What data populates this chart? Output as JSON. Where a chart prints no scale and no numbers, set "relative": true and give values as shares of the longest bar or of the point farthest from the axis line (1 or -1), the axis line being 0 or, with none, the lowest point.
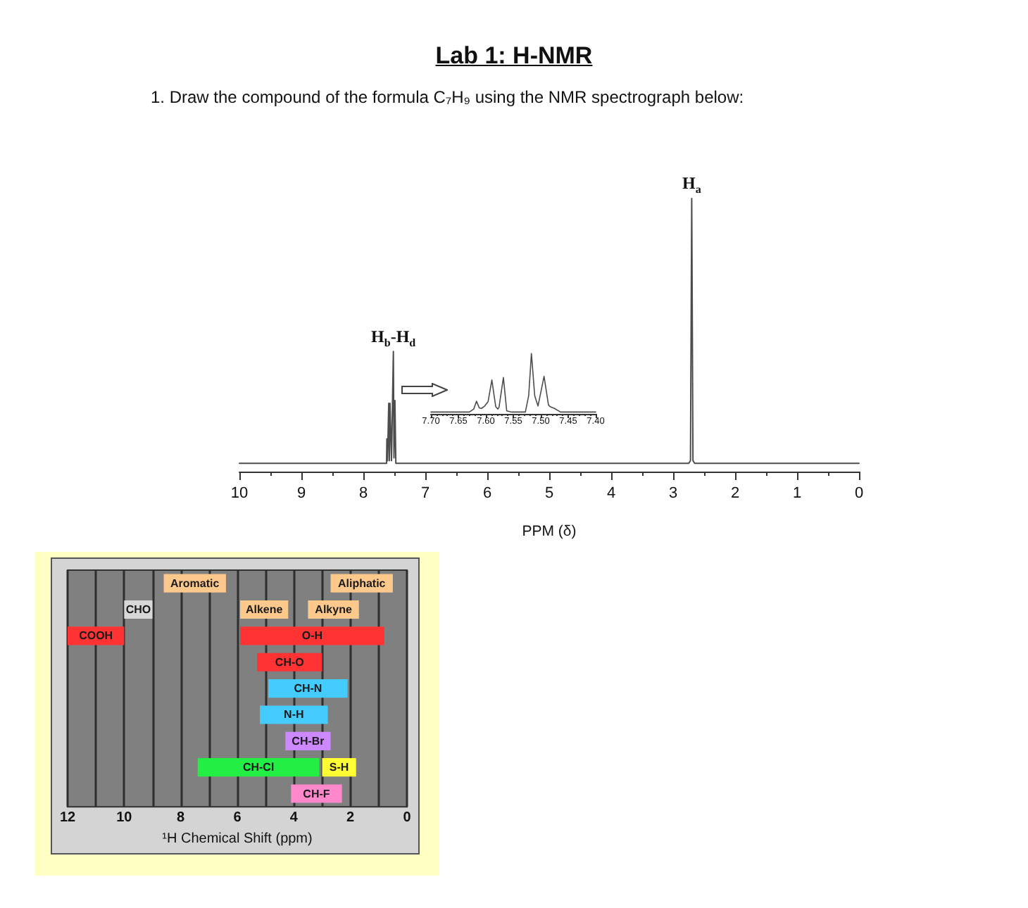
{
  "chart_data": [
    {
      "type": "line",
      "title": "Lab 1: H-NMR",
      "subtitle": "1. Draw the compound of the formula C₇H₉ using the NMR spectrograph below:",
      "xlabel": "PPM (δ)",
      "relative": true,
      "color": "#4d4d4d",
      "x": [
        10,
        7.66,
        7.625,
        7.62,
        7.61,
        7.59,
        7.58,
        7.57,
        7.545,
        7.515,
        7.505,
        7.49,
        7.475,
        7.44,
        2.75,
        2.72,
        2.7,
        2.68,
        2.65,
        0
      ],
      "values": [
        0.03,
        0.03,
        0.03,
        0.12,
        0.04,
        0.25,
        0.04,
        0.25,
        0.04,
        0.44,
        0.05,
        0.26,
        0.03,
        0.03,
        0.03,
        0.04,
        1,
        0.04,
        0.03,
        0.03
      ],
      "xlim": [
        10,
        0
      ],
      "xticks": [
        10,
        {
          "value": 9.5,
          "label": null
        },
        9,
        {
          "value": 8.5,
          "label": null
        },
        8,
        {
          "value": 7.5,
          "label": null
        },
        7,
        {
          "value": 6.5,
          "label": null
        },
        6,
        {
          "value": 5.5,
          "label": null
        },
        5,
        {
          "value": 4.5,
          "label": null
        },
        4,
        {
          "value": 3.5,
          "label": null
        },
        3,
        {
          "value": 2.5,
          "label": null
        },
        2,
        {
          "value": 1.5,
          "label": null
        },
        1,
        {
          "value": 0.5,
          "label": null
        },
        0
      ],
      "annotations": [
        {
          "text": "H$_{a}$",
          "x": 2.7,
          "y": 1
        },
        {
          "text": "H$_{b}$-H$_{d}$",
          "x": 7.515,
          "y": 0.44
        }
      ]
    },
    {
      "type": "line",
      "relative": true,
      "color": "#4d4d4d",
      "x": [
        7.7,
        7.63,
        7.622,
        7.617,
        7.612,
        7.608,
        7.602,
        7.596,
        7.589,
        7.582,
        7.578,
        7.576,
        7.568,
        7.562,
        7.553,
        7.528,
        7.522,
        7.517,
        7.511,
        7.505,
        7.494,
        7.486,
        7.483,
        7.475,
        7.464,
        7.4
      ],
      "values": [
        0.03,
        0.03,
        0.08,
        0.21,
        0.1,
        0.09,
        0.13,
        0.2,
        0.56,
        0.12,
        0.08,
        0.11,
        0.6,
        0.05,
        0.03,
        0.03,
        0.3,
        1,
        0.3,
        0.13,
        0.62,
        0.15,
        0.12,
        0.09,
        0.03,
        0.03
      ],
      "xlim": [
        7.7,
        7.4
      ],
      "xticks": [
        {
          "value": 7.7,
          "label": "7.70"
        },
        {
          "value": 7.69,
          "label": null
        },
        {
          "value": 7.68,
          "label": null
        },
        {
          "value": 7.67,
          "label": null
        },
        {
          "value": 7.66,
          "label": null
        },
        7.65,
        {
          "value": 7.64,
          "label": null
        },
        {
          "value": 7.63,
          "label": null
        },
        {
          "value": 7.62,
          "label": null
        },
        {
          "value": 7.61,
          "label": null
        },
        {
          "value": 7.6,
          "label": "7.60"
        },
        {
          "value": 7.59,
          "label": null
        },
        {
          "value": 7.58,
          "label": null
        },
        {
          "value": 7.57,
          "label": null
        },
        {
          "value": 7.56,
          "label": null
        },
        7.55,
        {
          "value": 7.54,
          "label": null
        },
        {
          "value": 7.53,
          "label": null
        },
        {
          "value": 7.52,
          "label": null
        },
        {
          "value": 7.51,
          "label": null
        },
        {
          "value": 7.5,
          "label": "7.50"
        },
        {
          "value": 7.49,
          "label": null
        },
        {
          "value": 7.48,
          "label": null
        },
        {
          "value": 7.47,
          "label": null
        },
        {
          "value": 7.46,
          "label": null
        },
        7.45,
        {
          "value": 7.44,
          "label": null
        },
        {
          "value": 7.43,
          "label": null
        },
        {
          "value": 7.42,
          "label": null
        },
        {
          "value": 7.41,
          "label": null
        },
        {
          "value": 7.4,
          "label": "7.40"
        }
      ]
    },
    {
      "type": "bar",
      "orientation": "horizontal",
      "xlabel": "¹H Chemical Shift (ppm)",
      "grid": "x",
      "categories": [
        null,
        null,
        null,
        null,
        null,
        null,
        null,
        null,
        null
      ],
      "xlim": [
        12,
        0
      ],
      "xticks": [
        12,
        {
          "value": 11,
          "label": null
        },
        10,
        {
          "value": 9,
          "label": null
        },
        8,
        {
          "value": 7,
          "label": null
        },
        6,
        {
          "value": 5,
          "label": null
        },
        4,
        {
          "value": 3,
          "label": null
        },
        2,
        {
          "value": 1,
          "label": null
        },
        0
      ],
      "series": [
        {
          "name": "Aromatic",
          "color": "#fcc88c",
          "values": [
            2.2,
            null,
            null,
            null,
            null,
            null,
            null,
            null,
            null
          ],
          "base": [
            6.4,
            null,
            null,
            null,
            null,
            null,
            null,
            null,
            null
          ]
        },
        {
          "name": "Aliphatic",
          "color": "#fcc88c",
          "values": [
            2.2,
            null,
            null,
            null,
            null,
            null,
            null,
            null,
            null
          ],
          "base": [
            0.5,
            null,
            null,
            null,
            null,
            null,
            null,
            null,
            null
          ]
        },
        {
          "name": "CHO",
          "color": "#d8d8d8",
          "values": [
            null,
            1,
            null,
            null,
            null,
            null,
            null,
            null,
            null
          ],
          "base": [
            null,
            9,
            null,
            null,
            null,
            null,
            null,
            null,
            null
          ]
        },
        {
          "name": "Alkene",
          "color": "#fcc88c",
          "values": [
            null,
            1.7,
            null,
            null,
            null,
            null,
            null,
            null,
            null
          ],
          "base": [
            null,
            4.2,
            null,
            null,
            null,
            null,
            null,
            null,
            null
          ]
        },
        {
          "name": "Alkyne",
          "color": "#fcc88c",
          "values": [
            null,
            1.8,
            null,
            null,
            null,
            null,
            null,
            null,
            null
          ],
          "base": [
            null,
            1.7,
            null,
            null,
            null,
            null,
            null,
            null,
            null
          ]
        },
        {
          "name": "COOH",
          "color": "#ff3333",
          "values": [
            null,
            null,
            2,
            null,
            null,
            null,
            null,
            null,
            null
          ],
          "base": [
            null,
            null,
            10,
            null,
            null,
            null,
            null,
            null,
            null
          ]
        },
        {
          "name": "O-H",
          "color": "#ff3333",
          "values": [
            null,
            null,
            5.1,
            null,
            null,
            null,
            null,
            null,
            null
          ],
          "base": [
            null,
            null,
            0.8,
            null,
            null,
            null,
            null,
            null,
            null
          ]
        },
        {
          "name": "CH-O",
          "color": "#ff3333",
          "values": [
            null,
            null,
            null,
            2.3,
            null,
            null,
            null,
            null,
            null
          ],
          "base": [
            null,
            null,
            null,
            3,
            null,
            null,
            null,
            null,
            null
          ]
        },
        {
          "name": "CH-N",
          "color": "#44ccff",
          "values": [
            null,
            null,
            null,
            null,
            2.8,
            null,
            null,
            null,
            null
          ],
          "base": [
            null,
            null,
            null,
            null,
            2.1,
            null,
            null,
            null,
            null
          ]
        },
        {
          "name": "N-H",
          "color": "#44ccff",
          "values": [
            null,
            null,
            null,
            null,
            null,
            2.4,
            null,
            null,
            null
          ],
          "base": [
            null,
            null,
            null,
            null,
            null,
            2.8,
            null,
            null,
            null
          ]
        },
        {
          "name": "CH-Br",
          "color": "#cc88ff",
          "values": [
            null,
            null,
            null,
            null,
            null,
            null,
            1.6,
            null,
            null
          ],
          "base": [
            null,
            null,
            null,
            null,
            null,
            null,
            2.7,
            null,
            null
          ]
        },
        {
          "name": "CH-Cl",
          "color": "#22ee44",
          "values": [
            null,
            null,
            null,
            null,
            null,
            null,
            null,
            4.3,
            null
          ],
          "base": [
            null,
            null,
            null,
            null,
            null,
            null,
            null,
            3.1,
            null
          ]
        },
        {
          "name": "S-H",
          "color": "#ffff33",
          "values": [
            null,
            null,
            null,
            null,
            null,
            null,
            null,
            1.2,
            null
          ],
          "base": [
            null,
            null,
            null,
            null,
            null,
            null,
            null,
            1.8,
            null
          ]
        },
        {
          "name": "CH-F",
          "color": "#ff88cc",
          "values": [
            null,
            null,
            null,
            null,
            null,
            null,
            null,
            null,
            1.8
          ],
          "base": [
            null,
            null,
            null,
            null,
            null,
            null,
            null,
            null,
            2.3
          ]
        }
      ]
    }
  ]
}
